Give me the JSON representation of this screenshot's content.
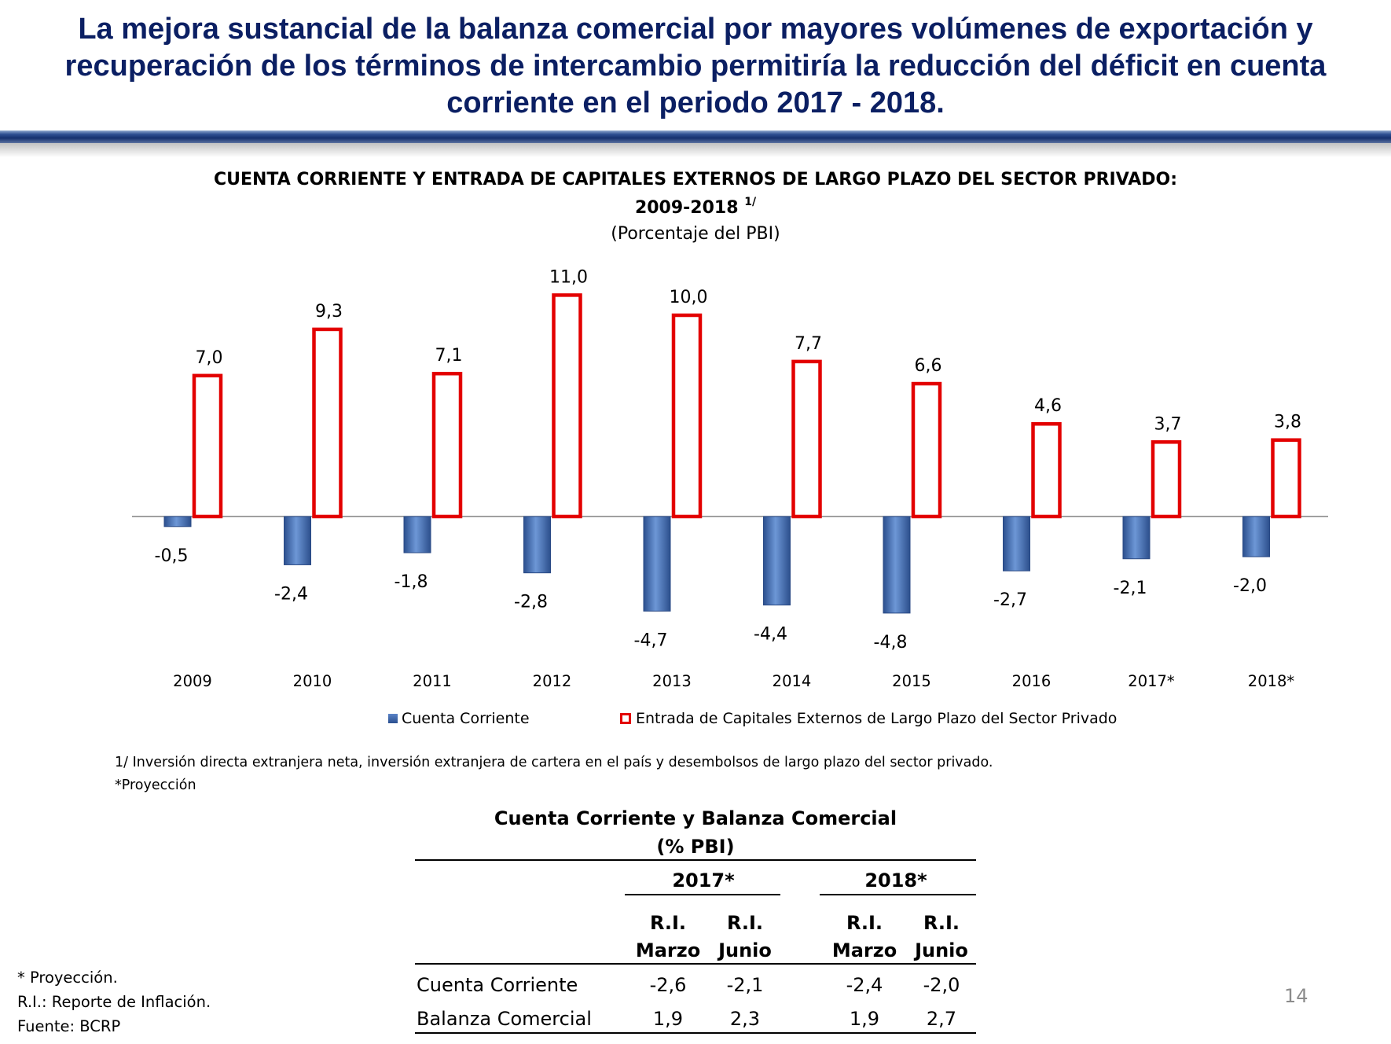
{
  "slide": {
    "title": "La mejora sustancial de la balanza comercial por mayores volúmenes de exportación y recuperación de los términos de intercambio permitiría la reducción del déficit en cuenta corriente en el periodo 2017 - 2018.",
    "page_number": "14"
  },
  "chart_data": {
    "type": "bar",
    "title": "CUENTA CORRIENTE Y ENTRADA DE CAPITALES EXTERNOS DE LARGO PLAZO DEL SECTOR PRIVADO:",
    "title_line2": "2009-2018",
    "title_sup": "1/",
    "subtitle": "(Porcentaje del PBI)",
    "categories": [
      "2009",
      "2010",
      "2011",
      "2012",
      "2013",
      "2014",
      "2015",
      "2016",
      "2017*",
      "2018*"
    ],
    "series": [
      {
        "name": "Cuenta Corriente",
        "color": "#4f7bc0",
        "values": [
          -0.5,
          -2.4,
          -1.8,
          -2.8,
          -4.7,
          -4.4,
          -4.8,
          -2.7,
          -2.1,
          -2.0
        ],
        "labels": [
          "-0,5",
          "-2,4",
          "-1,8",
          "-2,8",
          "-4,7",
          "-4,4",
          "-4,8",
          "-2,7",
          "-2,1",
          "-2,0"
        ]
      },
      {
        "name": "Entrada de Capitales Externos de Largo Plazo del Sector Privado",
        "color": "#e30000",
        "values": [
          7.0,
          9.3,
          7.1,
          11.0,
          10.0,
          7.7,
          6.6,
          4.6,
          3.7,
          3.8
        ],
        "labels": [
          "7,0",
          "9,3",
          "7,1",
          "11,0",
          "10,0",
          "7,7",
          "6,6",
          "4,6",
          "3,7",
          "3,8"
        ]
      }
    ],
    "ylim": [
      -5.5,
      12
    ],
    "grid": false,
    "legend_position": "bottom"
  },
  "notes": {
    "footnote_1": "1/ Inversión directa extranjera neta, inversión extranjera de cartera en el país  y desembolsos de largo plazo del sector privado.",
    "footnote_2": "*Proyección"
  },
  "table": {
    "title": "Cuenta Corriente y Balanza Comercial",
    "subtitle": "(% PBI)",
    "groups": [
      "2017*",
      "2018*"
    ],
    "col_line1": [
      "R.I.",
      "R.I.",
      "R.I.",
      "R.I."
    ],
    "col_line2": [
      "Marzo",
      "Junio",
      "Marzo",
      "Junio"
    ],
    "rows": [
      {
        "label": "Cuenta Corriente",
        "values": [
          "-2,6",
          "-2,1",
          "-2,4",
          "-2,0"
        ]
      },
      {
        "label": "Balanza Comercial",
        "values": [
          "1,9",
          "2,3",
          "1,9",
          "2,7"
        ]
      }
    ]
  },
  "footer": {
    "line1": "* Proyección.",
    "line2": "R.I.: Reporte de Inflación.",
    "line3": "Fuente: BCRP"
  }
}
